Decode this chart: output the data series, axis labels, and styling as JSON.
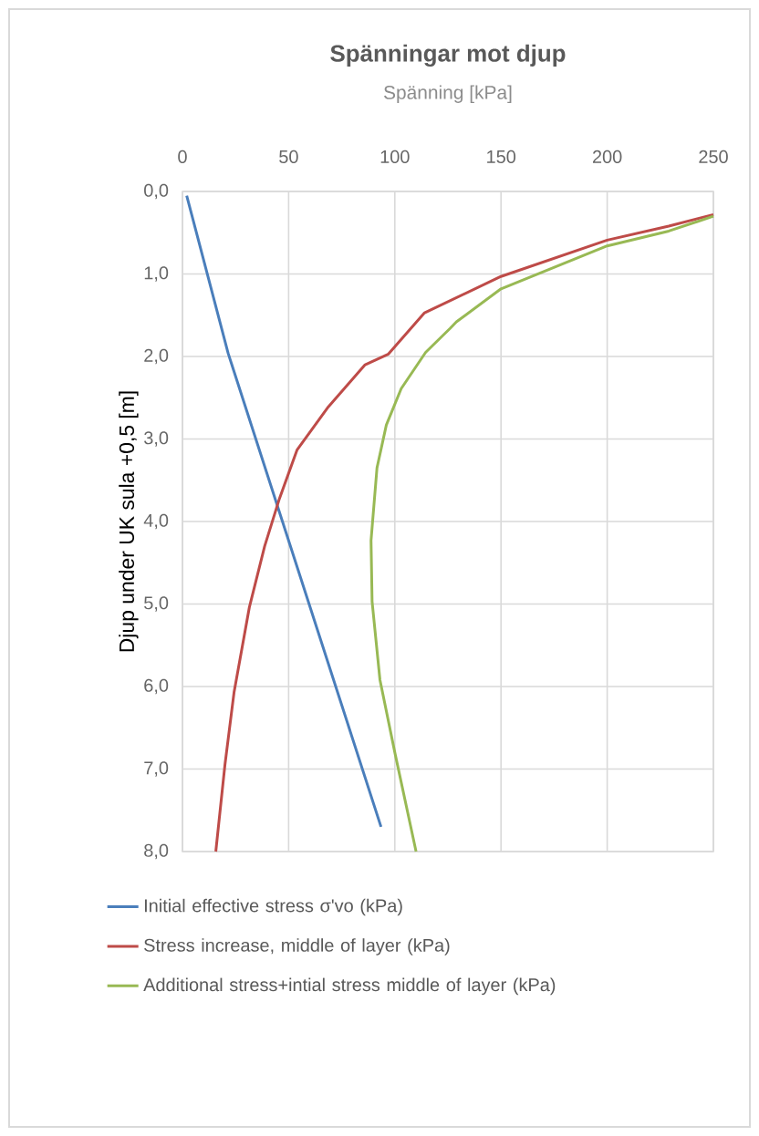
{
  "chart_data": {
    "type": "line",
    "title": "Spänningar mot djup",
    "xlabel": "Spänning [kPa]",
    "ylabel": "Djup under UK sula +0,5 [m]",
    "xlim": [
      0,
      250
    ],
    "xticks": [
      0,
      50,
      100,
      150,
      200,
      250
    ],
    "ylim": [
      8,
      0
    ],
    "yticks": [
      {
        "value": 0,
        "label": "0,0"
      },
      {
        "value": 1,
        "label": "1,0"
      },
      {
        "value": 2,
        "label": "2,0"
      },
      {
        "value": 3,
        "label": "3,0"
      },
      {
        "value": 4,
        "label": "4,0"
      },
      {
        "value": 5,
        "label": "5,0"
      },
      {
        "value": 6,
        "label": "6,0"
      },
      {
        "value": 7,
        "label": "7,0"
      },
      {
        "value": 8,
        "label": "8,0"
      }
    ],
    "grid": true,
    "legend": "bottom",
    "marker": "none",
    "line_style": "solid",
    "series": [
      {
        "name": "Initial effective stress σ'vo (kPa)",
        "color": "#4a7ebb",
        "x": [
          2,
          21.5,
          93.5
        ],
        "values": [
          0.05,
          1.96,
          7.7
        ]
      },
      {
        "name": "Stress increase, middle of layer (kPa)",
        "color": "#be4b48",
        "x": [
          250,
          229,
          200,
          150,
          114,
          97,
          86,
          68.7,
          54,
          45.7,
          38.7,
          31.5,
          24.3,
          20,
          15.7
        ],
        "values": [
          0.28,
          0.42,
          0.59,
          1.03,
          1.47,
          1.97,
          2.1,
          2.61,
          3.13,
          3.72,
          4.3,
          5.04,
          6.07,
          6.95,
          8.0
        ]
      },
      {
        "name": "Additional stress+intial stress middle of layer (kPa)",
        "color": "#98b954",
        "x": [
          250,
          229,
          200,
          150,
          129,
          126,
          114.5,
          103,
          96,
          91.6,
          88.8,
          89.3,
          93,
          100,
          110
        ],
        "values": [
          0.3,
          0.48,
          0.66,
          1.18,
          1.58,
          1.66,
          1.95,
          2.39,
          2.83,
          3.35,
          4.23,
          4.97,
          5.92,
          6.8,
          8.0
        ]
      }
    ]
  }
}
